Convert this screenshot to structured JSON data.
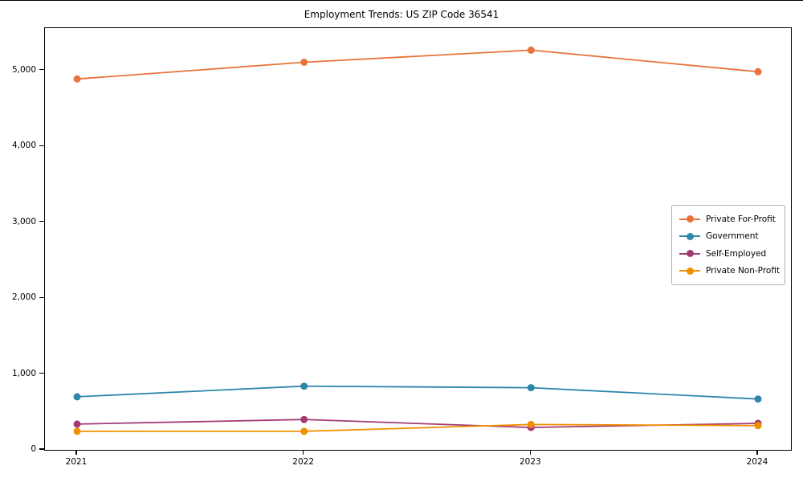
{
  "chart_data": {
    "type": "line",
    "title": "Employment Trends: US ZIP Code 36541",
    "x": [
      2021,
      2022,
      2023,
      2024
    ],
    "x_tick_labels": [
      "2021",
      "2022",
      "2023",
      "2024"
    ],
    "y_ticks": [
      0,
      1000,
      2000,
      3000,
      4000,
      5000
    ],
    "y_tick_labels": [
      "0",
      "1,000",
      "2,000",
      "3,000",
      "4,000",
      "5,000"
    ],
    "ylim": [
      0,
      5560
    ],
    "grid": false,
    "legend_position": "center right",
    "marker": "circle",
    "background_color": "#ffffff",
    "axis_color": "#000000",
    "series": [
      {
        "name": "Private For-Profit",
        "color": "#E8743B",
        "values": [
          4890,
          5110,
          5270,
          4985
        ]
      },
      {
        "name": "Government",
        "color": "#2E86AB",
        "values": [
          700,
          840,
          820,
          670
        ]
      },
      {
        "name": "Self-Employed",
        "color": "#A23B72",
        "values": [
          340,
          400,
          295,
          350
        ]
      },
      {
        "name": "Private Non-Profit",
        "color": "#F18F01",
        "values": [
          245,
          245,
          335,
          320
        ]
      }
    ]
  }
}
